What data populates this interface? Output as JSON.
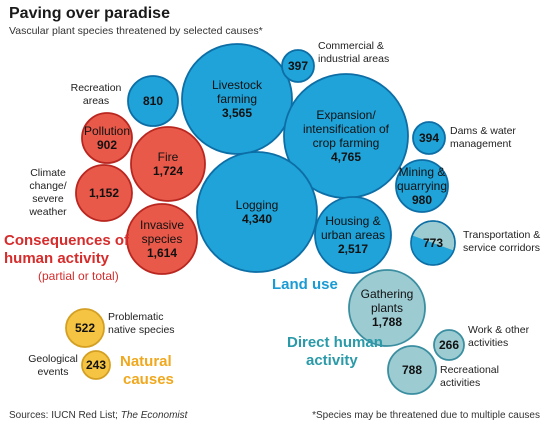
{
  "title": "Paving over paradise",
  "subtitle": "Vascular plant species threatened by selected causes*",
  "source": "Sources: IUCN Red List; ",
  "source_italic": "The Economist",
  "footnote": "*Species may be threatened due to multiple causes",
  "colors": {
    "land_use": "#1fa3d8",
    "land_use_stroke": "#0d6ea6",
    "human": "#e8594a",
    "human_stroke": "#b9261f",
    "natural": "#f6c443",
    "natural_stroke": "#d4a023",
    "direct": "#9ccbd2",
    "direct_stroke": "#3a8ea0",
    "human_label": "#d62c2c",
    "land_label": "#1a9bd4",
    "natural_label": "#f0a81e",
    "direct_label": "#2a9aa8"
  },
  "groups": {
    "human": {
      "line1": "Consequences of",
      "line2": "human activity",
      "line3": "(partial or total)"
    },
    "land_use": {
      "line1": "Land use"
    },
    "natural": {
      "line1": "Natural",
      "line2": "causes"
    },
    "direct": {
      "line1": "Direct human",
      "line2": "activity"
    }
  },
  "chart_data": {
    "type": "bubble",
    "title": "Paving over paradise",
    "subtitle": "Vascular plant species threatened by selected causes*",
    "groups": [
      "Land use",
      "Consequences of human activity (partial or total)",
      "Natural causes",
      "Direct human activity"
    ],
    "data": [
      {
        "label": "Livestock farming",
        "value": 3565,
        "group": "Land use"
      },
      {
        "label": "Expansion/ intensification of crop farming",
        "value": 4765,
        "group": "Land use"
      },
      {
        "label": "Logging",
        "value": 4340,
        "group": "Land use"
      },
      {
        "label": "Housing & urban areas",
        "value": 2517,
        "group": "Land use"
      },
      {
        "label": "Recreation areas",
        "value": 810,
        "group": "Land use"
      },
      {
        "label": "Commercial & industrial areas",
        "value": 397,
        "group": "Land use"
      },
      {
        "label": "Dams & water management",
        "value": 394,
        "group": "Land use"
      },
      {
        "label": "Mining & quarrying",
        "value": 980,
        "group": "Land use"
      },
      {
        "label": "Transportation & service corridors",
        "value": 773,
        "group": "Land use / Direct human activity"
      },
      {
        "label": "Pollution",
        "value": 902,
        "group": "Consequences of human activity"
      },
      {
        "label": "Fire",
        "value": 1724,
        "group": "Consequences of human activity"
      },
      {
        "label": "Climate change/ severe weather",
        "value": 1152,
        "group": "Consequences of human activity"
      },
      {
        "label": "Invasive species",
        "value": 1614,
        "group": "Consequences of human activity"
      },
      {
        "label": "Problematic native species",
        "value": 522,
        "group": "Natural causes"
      },
      {
        "label": "Geological events",
        "value": 243,
        "group": "Natural causes"
      },
      {
        "label": "Gathering plants",
        "value": 1788,
        "group": "Direct human activity"
      },
      {
        "label": "Work & other activities",
        "value": 266,
        "group": "Direct human activity"
      },
      {
        "label": "Recreational activities",
        "value": 788,
        "group": "Direct human activity"
      }
    ]
  },
  "bubbles": [
    {
      "key": "livestock",
      "fill": "land_use",
      "lines": [
        "Livestock",
        "farming"
      ],
      "value": "3,565"
    },
    {
      "key": "crop",
      "fill": "land_use",
      "lines": [
        "Expansion/",
        "intensification of",
        "crop farming"
      ],
      "value": "4,765"
    },
    {
      "key": "logging",
      "fill": "land_use",
      "lines": [
        "Logging"
      ],
      "value": "4,340"
    },
    {
      "key": "housing",
      "fill": "land_use",
      "lines": [
        "Housing &",
        "urban areas"
      ],
      "value": "2,517"
    },
    {
      "key": "recreation_areas",
      "fill": "land_use",
      "lines": [],
      "value": "810"
    },
    {
      "key": "commercial",
      "fill": "land_use",
      "lines": [],
      "value": "397"
    },
    {
      "key": "dams",
      "fill": "land_use",
      "lines": [],
      "value": "394"
    },
    {
      "key": "mining",
      "fill": "land_use",
      "lines": [
        "Mining &",
        "quarrying"
      ],
      "value": "980"
    },
    {
      "key": "transport",
      "fill": "split",
      "lines": [],
      "value": "773"
    },
    {
      "key": "pollution",
      "fill": "human",
      "lines": [
        "Pollution"
      ],
      "value": "902"
    },
    {
      "key": "fire",
      "fill": "human",
      "lines": [
        "Fire"
      ],
      "value": "1,724"
    },
    {
      "key": "climate",
      "fill": "human",
      "lines": [],
      "value": "1,152"
    },
    {
      "key": "invasive",
      "fill": "human",
      "lines": [
        "Invasive",
        "species"
      ],
      "value": "1,614"
    },
    {
      "key": "problematic",
      "fill": "natural",
      "lines": [],
      "value": "522"
    },
    {
      "key": "geological",
      "fill": "natural",
      "lines": [],
      "value": "243"
    },
    {
      "key": "gathering",
      "fill": "direct",
      "lines": [
        "Gathering",
        "plants"
      ],
      "value": "1,788"
    },
    {
      "key": "work",
      "fill": "direct",
      "lines": [],
      "value": "266"
    },
    {
      "key": "recreational",
      "fill": "direct",
      "lines": [],
      "value": "788"
    }
  ],
  "external_labels": [
    {
      "key": "recreation_areas",
      "lines": [
        "Recreation",
        "areas"
      ]
    },
    {
      "key": "commercial",
      "lines": [
        "Commercial &",
        "industrial areas"
      ]
    },
    {
      "key": "dams",
      "lines": [
        "Dams & water",
        "management"
      ]
    },
    {
      "key": "transport",
      "lines": [
        "Transportation &",
        "service corridors"
      ]
    },
    {
      "key": "climate",
      "lines": [
        "Climate",
        "change/",
        "severe",
        "weather"
      ]
    },
    {
      "key": "problematic",
      "lines": [
        "Problematic",
        "native species"
      ]
    },
    {
      "key": "geological",
      "lines": [
        "Geological",
        "events"
      ]
    },
    {
      "key": "work",
      "lines": [
        "Work & other",
        "activities"
      ]
    },
    {
      "key": "recreational",
      "lines": [
        "Recreational",
        "activities"
      ]
    }
  ]
}
